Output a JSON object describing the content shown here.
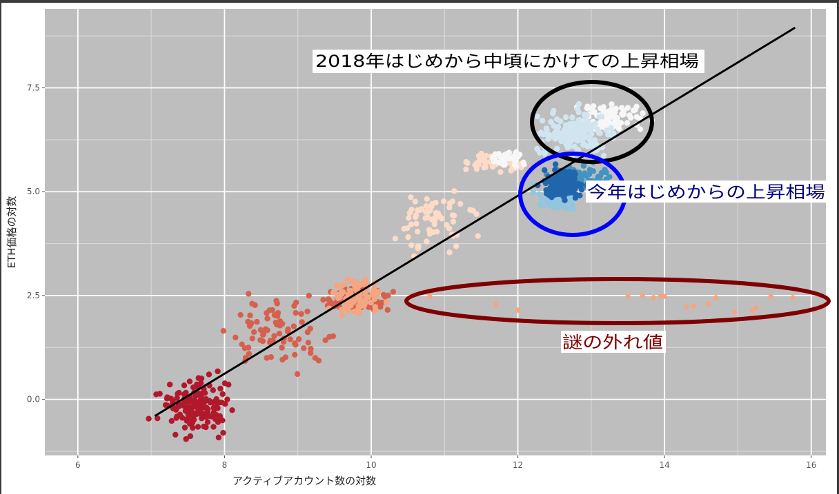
{
  "chart_data": {
    "type": "scatter",
    "xlabel": "アクティブアカウント数の対数",
    "ylabel": "ETH価格の対数",
    "xlim": [
      5.55,
      16.2
    ],
    "ylim": [
      -1.35,
      9.4
    ],
    "x_ticks": [
      6,
      8,
      10,
      12,
      14,
      16
    ],
    "x_tick_labels": [
      "6",
      "8",
      "10",
      "12",
      "14",
      "16"
    ],
    "y_ticks": [
      0.0,
      2.5,
      5.0,
      7.5
    ],
    "y_tick_labels": [
      "0.0",
      "2.5",
      "5.0",
      "7.5"
    ],
    "grid": true,
    "background": "#bebebe",
    "regression_line": {
      "x": [
        7.05,
        15.78
      ],
      "y": [
        -0.4,
        8.95
      ],
      "color": "#000000"
    },
    "clusters": [
      {
        "color": "#b2182b",
        "x_range": [
          7.0,
          8.2
        ],
        "y_range": [
          -0.9,
          0.6
        ],
        "count": 150
      },
      {
        "color": "#d6604d",
        "x_range": [
          8.0,
          9.6
        ],
        "y_range": [
          0.6,
          2.5
        ],
        "count": 80
      },
      {
        "color": "#d6604d",
        "x_range": [
          9.2,
          10.3
        ],
        "y_range": [
          2.1,
          2.7
        ],
        "count": 90
      },
      {
        "color": "#f4a582",
        "x_range": [
          9.4,
          10.2
        ],
        "y_range": [
          1.9,
          3.0
        ],
        "count": 90
      },
      {
        "color": "#fddbc7",
        "x_range": [
          10.2,
          11.5
        ],
        "y_range": [
          3.4,
          5.2
        ],
        "count": 70
      },
      {
        "color": "#fddbc7",
        "x_range": [
          11.3,
          12.1
        ],
        "y_range": [
          5.4,
          6.0
        ],
        "count": 50
      },
      {
        "color": "#f7f7f7",
        "x_range": [
          11.6,
          12.2
        ],
        "y_range": [
          5.5,
          6.1
        ],
        "count": 40
      },
      {
        "color": "#f7f7f7",
        "x_range": [
          12.7,
          13.8
        ],
        "y_range": [
          6.3,
          7.2
        ],
        "count": 90
      },
      {
        "color": "#d1e5f0",
        "x_range": [
          12.2,
          13.4
        ],
        "y_range": [
          5.8,
          7.0
        ],
        "count": 180
      },
      {
        "color": "#92c5de",
        "x_range": [
          12.2,
          12.9
        ],
        "y_range": [
          4.5,
          5.3
        ],
        "count": 80
      },
      {
        "color": "#4393c3",
        "x_range": [
          12.4,
          13.3
        ],
        "y_range": [
          5.0,
          5.7
        ],
        "count": 60
      },
      {
        "color": "#2166ac",
        "x_range": [
          12.3,
          12.9
        ],
        "y_range": [
          4.8,
          5.6
        ],
        "count": 200
      }
    ],
    "outliers": {
      "color": "#f4a582",
      "points": [
        [
          10.8,
          2.48
        ],
        [
          11.7,
          2.28
        ],
        [
          12.0,
          2.15
        ],
        [
          13.5,
          2.48
        ],
        [
          13.7,
          2.5
        ],
        [
          13.85,
          2.45
        ],
        [
          13.95,
          2.5
        ],
        [
          14.0,
          2.48
        ],
        [
          14.3,
          2.22
        ],
        [
          14.4,
          2.25
        ],
        [
          14.6,
          2.3
        ],
        [
          14.7,
          2.45
        ],
        [
          14.95,
          2.1
        ],
        [
          15.2,
          2.15
        ],
        [
          15.25,
          2.2
        ],
        [
          15.45,
          2.48
        ],
        [
          15.75,
          2.45
        ]
      ]
    },
    "annotations": [
      {
        "id": "rally-2018",
        "text": "2018年はじめから中頃にかけての上昇相場",
        "color": "#000000",
        "ellipse_color": "#000000"
      },
      {
        "id": "rally-this-year",
        "text": "今年はじめからの上昇相場",
        "color": "#00007f",
        "ellipse_color": "#0000ff"
      },
      {
        "id": "mystery-outliers",
        "text": "謎の外れ値",
        "color": "#7f0000",
        "ellipse_color": "#7f0000"
      }
    ]
  }
}
